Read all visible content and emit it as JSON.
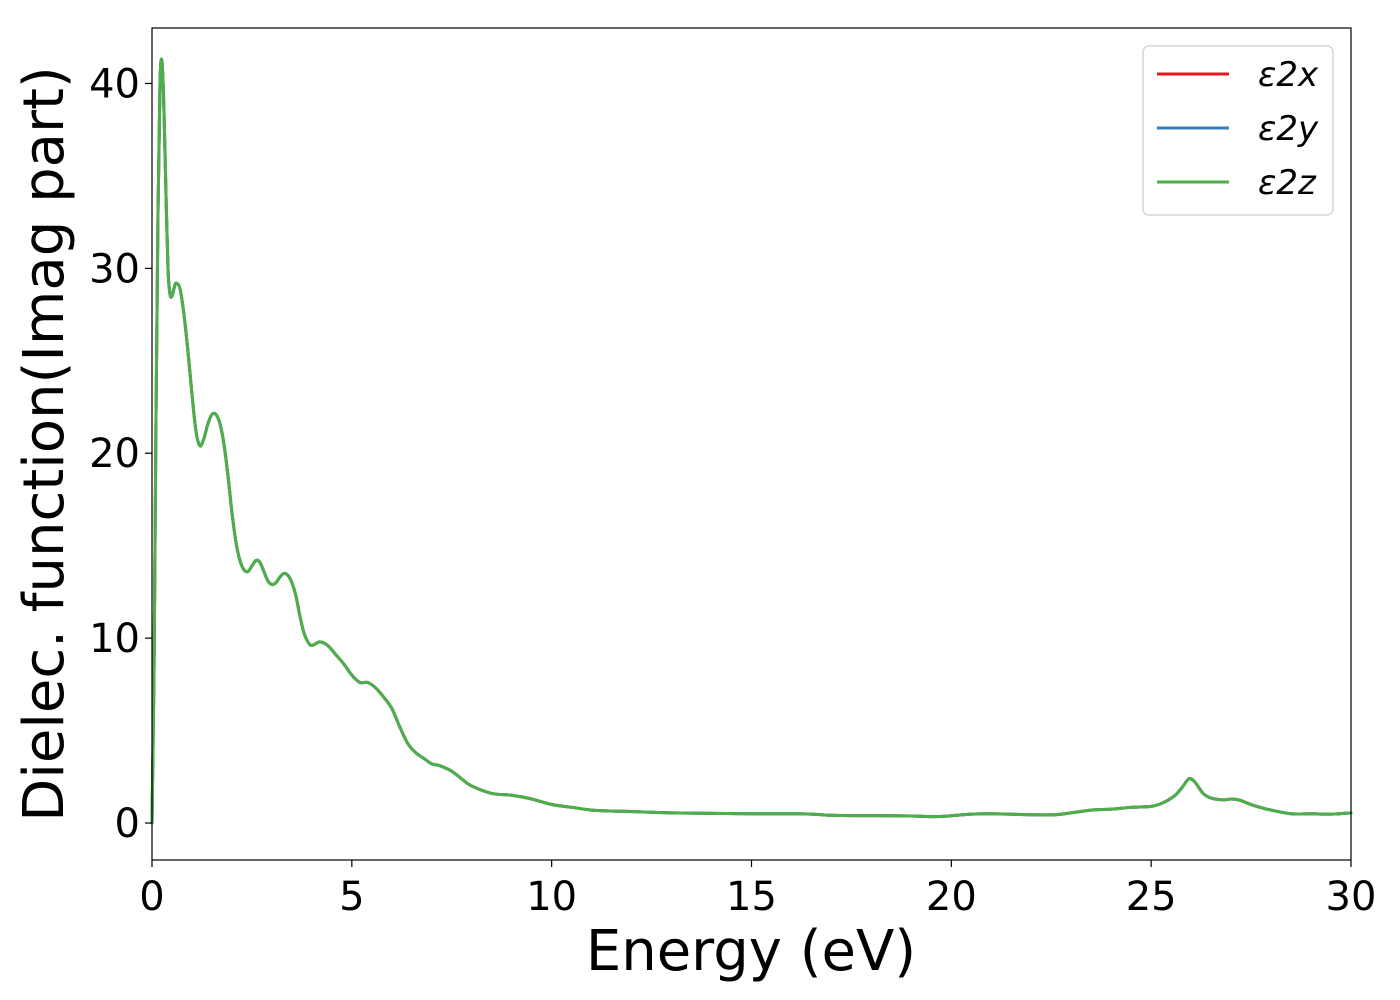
{
  "chart_data": {
    "type": "line",
    "xlabel": "Energy (eV)",
    "ylabel": "Dielec. function(Imag part)",
    "xlim": [
      0,
      30
    ],
    "ylim": [
      -2,
      43
    ],
    "xticks": [
      0,
      5,
      10,
      15,
      20,
      25,
      30
    ],
    "yticks": [
      0,
      10,
      20,
      30,
      40
    ],
    "xtick_labels": [
      "0",
      "5",
      "10",
      "15",
      "20",
      "25",
      "30"
    ],
    "ytick_labels": [
      "0",
      "10",
      "20",
      "30",
      "40"
    ],
    "grid": false,
    "legend_position": "top-right",
    "x": [
      0,
      0.05,
      0.1,
      0.15,
      0.2,
      0.25,
      0.3,
      0.35,
      0.4,
      0.45,
      0.5,
      0.55,
      0.6,
      0.7,
      0.8,
      0.9,
      1.0,
      1.1,
      1.2,
      1.3,
      1.4,
      1.5,
      1.6,
      1.7,
      1.8,
      1.9,
      2.0,
      2.1,
      2.2,
      2.3,
      2.4,
      2.5,
      2.6,
      2.7,
      2.8,
      2.9,
      3.0,
      3.1,
      3.2,
      3.3,
      3.4,
      3.5,
      3.6,
      3.7,
      3.8,
      3.9,
      4.0,
      4.2,
      4.4,
      4.6,
      4.8,
      5.0,
      5.2,
      5.4,
      5.6,
      5.8,
      6.0,
      6.2,
      6.4,
      6.6,
      6.8,
      7.0,
      7.2,
      7.5,
      7.8,
      8.0,
      8.5,
      9.0,
      9.5,
      10.0,
      10.5,
      11.0,
      11.5,
      12.0,
      13.0,
      14.0,
      15.0,
      16.0,
      16.5,
      17.0,
      17.5,
      18.0,
      19.0,
      19.7,
      20.5,
      21.0,
      22.0,
      22.6,
      23.0,
      23.5,
      24.0,
      24.5,
      25.0,
      25.3,
      25.6,
      25.8,
      25.95,
      26.1,
      26.3,
      26.5,
      26.8,
      27.0,
      27.2,
      27.5,
      27.8,
      28.0,
      28.5,
      29.0,
      29.5,
      30.0
    ],
    "series": [
      {
        "name": "ε2x",
        "color": "#e41a1c",
        "y": [
          0,
          8,
          22,
          33,
          40,
          41.2,
          38.5,
          34,
          30,
          28.6,
          28.5,
          28.9,
          29.2,
          28.9,
          27.5,
          25.5,
          23.2,
          21.2,
          20.4,
          20.8,
          21.6,
          22.1,
          22.1,
          21.6,
          20.5,
          18.8,
          16.8,
          15.2,
          14.2,
          13.7,
          13.6,
          13.9,
          14.2,
          14.1,
          13.6,
          13.1,
          12.9,
          13.0,
          13.3,
          13.5,
          13.4,
          13.0,
          12.3,
          11.2,
          10.3,
          9.8,
          9.6,
          9.8,
          9.6,
          9.1,
          8.6,
          8.0,
          7.6,
          7.6,
          7.3,
          6.8,
          6.2,
          5.2,
          4.3,
          3.8,
          3.5,
          3.2,
          3.1,
          2.8,
          2.3,
          2.0,
          1.6,
          1.5,
          1.3,
          1.0,
          0.85,
          0.7,
          0.65,
          0.62,
          0.55,
          0.52,
          0.5,
          0.5,
          0.48,
          0.42,
          0.4,
          0.4,
          0.38,
          0.35,
          0.48,
          0.5,
          0.45,
          0.45,
          0.55,
          0.7,
          0.75,
          0.85,
          0.9,
          1.1,
          1.5,
          2.0,
          2.4,
          2.2,
          1.6,
          1.35,
          1.25,
          1.3,
          1.25,
          1.0,
          0.8,
          0.7,
          0.5,
          0.5,
          0.48,
          0.55
        ]
      },
      {
        "name": "ε2y",
        "color": "#377eb8",
        "y": [
          0,
          8,
          22,
          33,
          40,
          41.2,
          38.5,
          34,
          30,
          28.6,
          28.5,
          28.9,
          29.2,
          28.9,
          27.5,
          25.5,
          23.2,
          21.2,
          20.4,
          20.8,
          21.6,
          22.1,
          22.1,
          21.6,
          20.5,
          18.8,
          16.8,
          15.2,
          14.2,
          13.7,
          13.6,
          13.9,
          14.2,
          14.1,
          13.6,
          13.1,
          12.9,
          13.0,
          13.3,
          13.5,
          13.4,
          13.0,
          12.3,
          11.2,
          10.3,
          9.8,
          9.6,
          9.8,
          9.6,
          9.1,
          8.6,
          8.0,
          7.6,
          7.6,
          7.3,
          6.8,
          6.2,
          5.2,
          4.3,
          3.8,
          3.5,
          3.2,
          3.1,
          2.8,
          2.3,
          2.0,
          1.6,
          1.5,
          1.3,
          1.0,
          0.85,
          0.7,
          0.65,
          0.62,
          0.55,
          0.52,
          0.5,
          0.5,
          0.48,
          0.42,
          0.4,
          0.4,
          0.38,
          0.35,
          0.48,
          0.5,
          0.45,
          0.45,
          0.55,
          0.7,
          0.75,
          0.85,
          0.9,
          1.1,
          1.5,
          2.0,
          2.4,
          2.2,
          1.6,
          1.35,
          1.25,
          1.3,
          1.25,
          1.0,
          0.8,
          0.7,
          0.5,
          0.5,
          0.48,
          0.55
        ]
      },
      {
        "name": "ε2z",
        "color": "#4daf4a",
        "y": [
          0,
          8,
          22,
          33,
          40,
          41.2,
          38.5,
          34,
          30,
          28.6,
          28.5,
          28.9,
          29.2,
          28.9,
          27.5,
          25.5,
          23.2,
          21.2,
          20.4,
          20.8,
          21.6,
          22.1,
          22.1,
          21.6,
          20.5,
          18.8,
          16.8,
          15.2,
          14.2,
          13.7,
          13.6,
          13.9,
          14.2,
          14.1,
          13.6,
          13.1,
          12.9,
          13.0,
          13.3,
          13.5,
          13.4,
          13.0,
          12.3,
          11.2,
          10.3,
          9.8,
          9.6,
          9.8,
          9.6,
          9.1,
          8.6,
          8.0,
          7.6,
          7.6,
          7.3,
          6.8,
          6.2,
          5.2,
          4.3,
          3.8,
          3.5,
          3.2,
          3.1,
          2.8,
          2.3,
          2.0,
          1.6,
          1.5,
          1.3,
          1.0,
          0.85,
          0.7,
          0.65,
          0.62,
          0.55,
          0.52,
          0.5,
          0.5,
          0.48,
          0.42,
          0.4,
          0.4,
          0.38,
          0.35,
          0.48,
          0.5,
          0.45,
          0.45,
          0.55,
          0.7,
          0.75,
          0.85,
          0.9,
          1.1,
          1.5,
          2.0,
          2.4,
          2.2,
          1.6,
          1.35,
          1.25,
          1.3,
          1.25,
          1.0,
          0.8,
          0.7,
          0.5,
          0.5,
          0.48,
          0.55
        ]
      }
    ]
  }
}
